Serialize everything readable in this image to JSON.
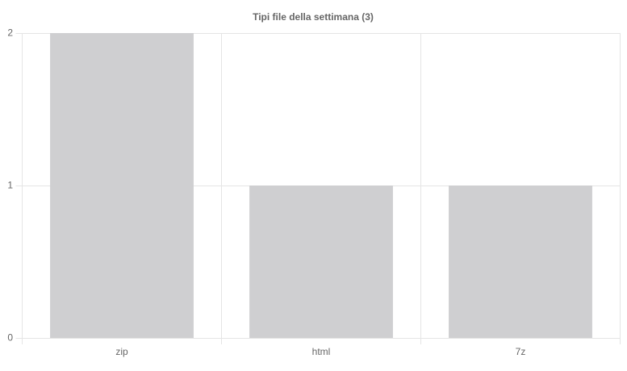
{
  "chart_data": {
    "type": "bar",
    "title": "Tipi file della settimana (3)",
    "categories": [
      "zip",
      "html",
      "7z"
    ],
    "values": [
      2,
      1,
      1
    ],
    "color": "#cfcfd1",
    "ylim": [
      0,
      2
    ],
    "yticks": [
      0,
      1,
      2
    ],
    "grid": true
  }
}
